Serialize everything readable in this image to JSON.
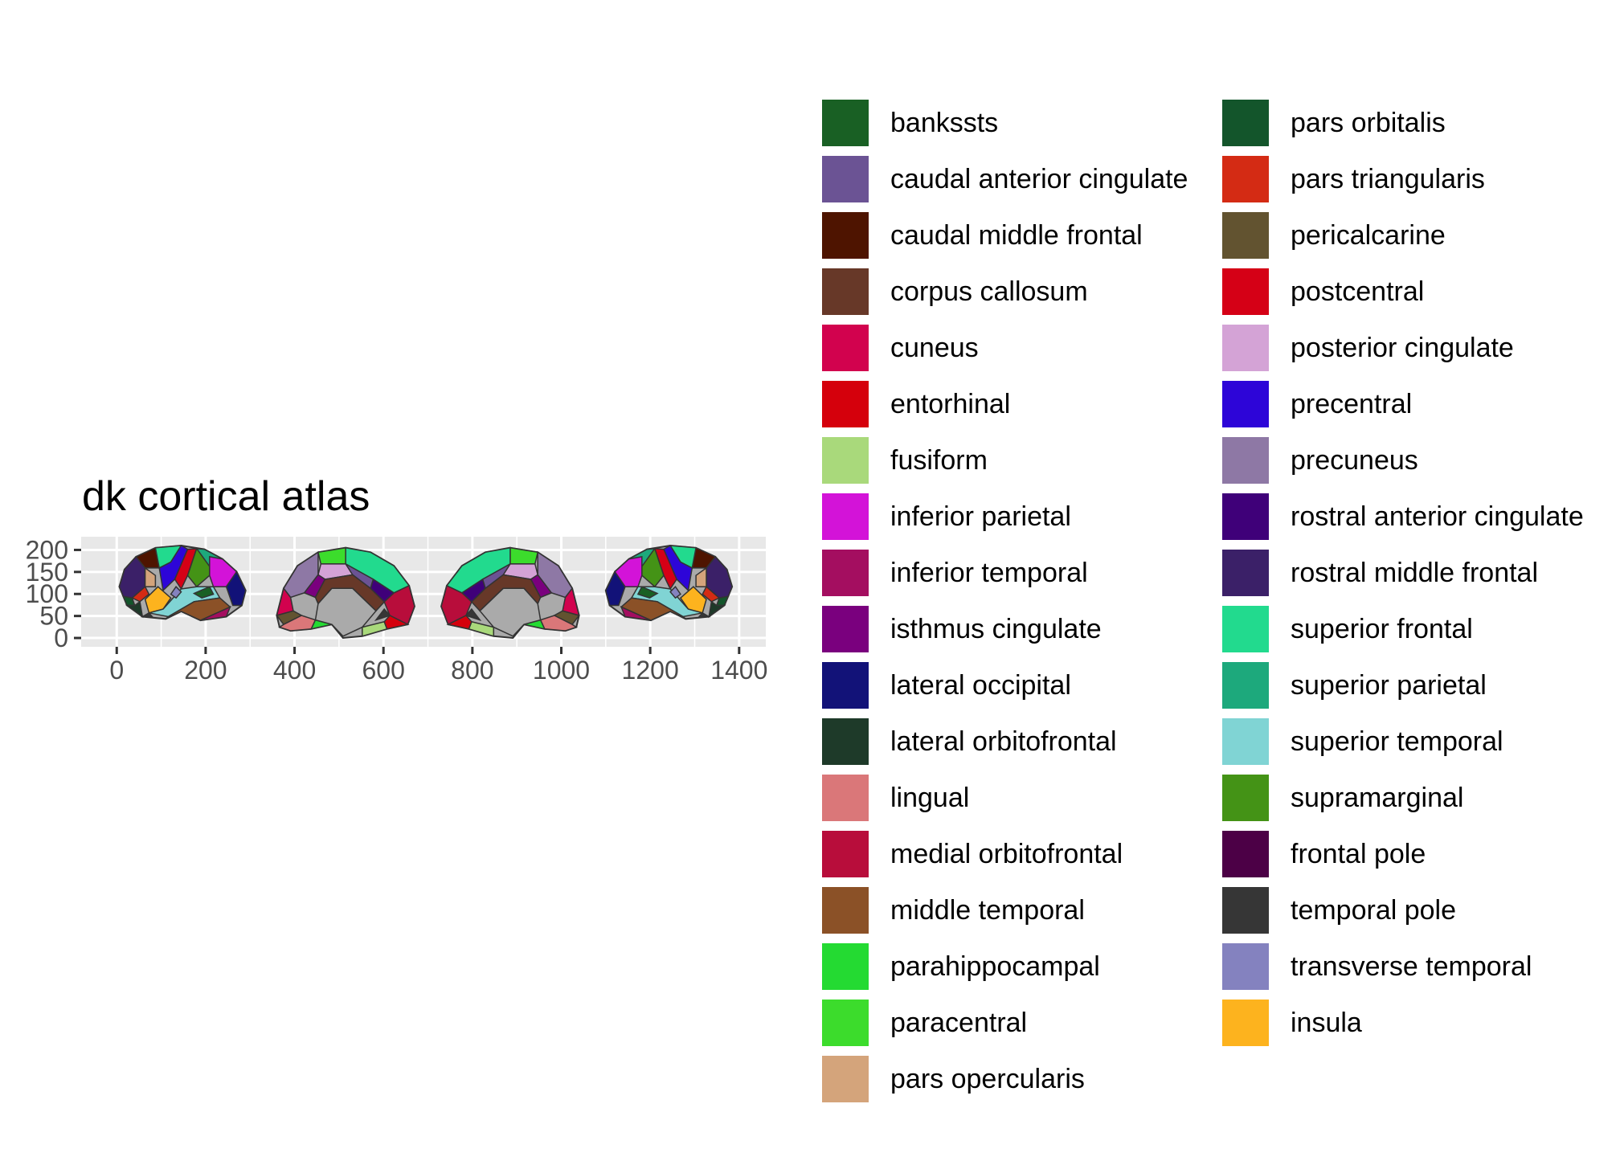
{
  "chart_data": {
    "type": "map",
    "title": "dk cortical atlas",
    "xlabel": "",
    "ylabel": "",
    "x_ticks": [
      0,
      200,
      400,
      600,
      800,
      1000,
      1200,
      1400
    ],
    "y_ticks": [
      0,
      50,
      100,
      150,
      200
    ],
    "xlim": [
      -80,
      1460
    ],
    "ylim": [
      -20,
      230
    ],
    "grid": true,
    "legend_position": "right",
    "legend_columns": 2,
    "views": [
      {
        "name": "lateral-left",
        "x_range": [
          0,
          290
        ],
        "y_range": [
          40,
          210
        ]
      },
      {
        "name": "medial-left",
        "x_range": [
          360,
          670
        ],
        "y_range": [
          0,
          205
        ]
      },
      {
        "name": "medial-right",
        "x_range": [
          730,
          1040
        ],
        "y_range": [
          0,
          205
        ]
      },
      {
        "name": "lateral-right",
        "x_range": [
          1100,
          1390
        ],
        "y_range": [
          40,
          210
        ]
      }
    ],
    "regions": [
      {
        "label": "bankssts",
        "color": "#196024"
      },
      {
        "label": "caudal anterior cingulate",
        "color": "#6b5394"
      },
      {
        "label": "caudal middle frontal",
        "color": "#4e1400"
      },
      {
        "label": "corpus callosum",
        "color": "#673828"
      },
      {
        "label": "cuneus",
        "color": "#d2024e"
      },
      {
        "label": "entorhinal",
        "color": "#d5000c"
      },
      {
        "label": "fusiform",
        "color": "#a9d97b"
      },
      {
        "label": "inferior parietal",
        "color": "#d313d8"
      },
      {
        "label": "inferior temporal",
        "color": "#a40e60"
      },
      {
        "label": "isthmus cingulate",
        "color": "#7a007e"
      },
      {
        "label": "lateral occipital",
        "color": "#121278"
      },
      {
        "label": "lateral orbitofrontal",
        "color": "#1e3a29"
      },
      {
        "label": "lingual",
        "color": "#da7779"
      },
      {
        "label": "medial orbitofrontal",
        "color": "#b80d3b"
      },
      {
        "label": "middle temporal",
        "color": "#8b5127"
      },
      {
        "label": "parahippocampal",
        "color": "#24da32"
      },
      {
        "label": "paracentral",
        "color": "#3cdc2c"
      },
      {
        "label": "pars opercularis",
        "color": "#d4a47b"
      },
      {
        "label": "pars orbitalis",
        "color": "#13552b"
      },
      {
        "label": "pars triangularis",
        "color": "#d42b14"
      },
      {
        "label": "pericalcarine",
        "color": "#625330"
      },
      {
        "label": "postcentral",
        "color": "#d50016"
      },
      {
        "label": "posterior cingulate",
        "color": "#d4a3d6"
      },
      {
        "label": "precentral",
        "color": "#2d05d8"
      },
      {
        "label": "precuneus",
        "color": "#8e78a5"
      },
      {
        "label": "rostral anterior cingulate",
        "color": "#3f0079"
      },
      {
        "label": "rostral middle frontal",
        "color": "#3b2068"
      },
      {
        "label": "superior frontal",
        "color": "#22da8e"
      },
      {
        "label": "superior parietal",
        "color": "#1da97c"
      },
      {
        "label": "superior temporal",
        "color": "#80d4d4"
      },
      {
        "label": "supramarginal",
        "color": "#449316"
      },
      {
        "label": "frontal pole",
        "color": "#4c0046"
      },
      {
        "label": "temporal pole",
        "color": "#363636"
      },
      {
        "label": "transverse temporal",
        "color": "#8482bf"
      },
      {
        "label": "insula",
        "color": "#fdb31e"
      }
    ],
    "no_data_color": "#aaaaaa"
  }
}
